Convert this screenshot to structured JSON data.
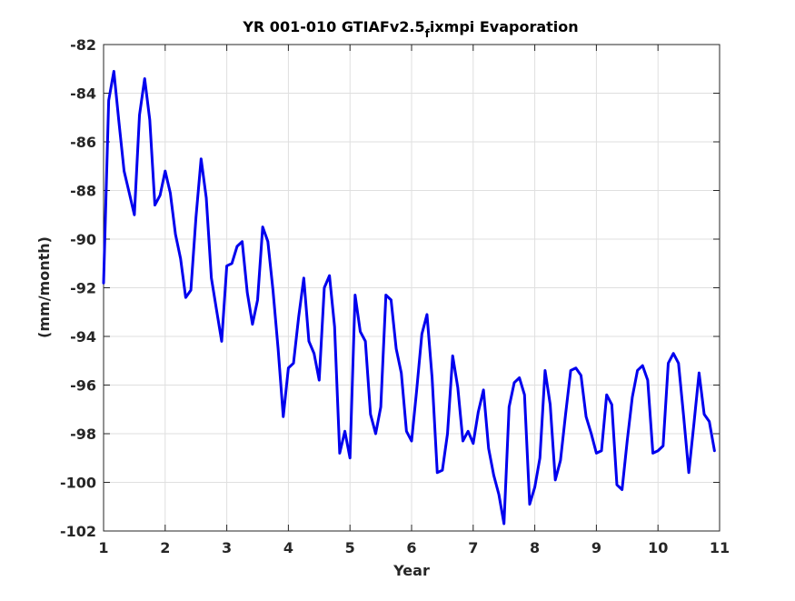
{
  "chart_data": {
    "type": "line",
    "title": "YR 001-010 GTIAFv2.5",
    "title_subscript": "f",
    "title_suffix": "ixmpi Evaporation",
    "xlabel": "Year",
    "ylabel": "(mm/month)",
    "xlim": [
      1,
      11
    ],
    "ylim": [
      -102,
      -82
    ],
    "xticks": [
      1,
      2,
      3,
      4,
      5,
      6,
      7,
      8,
      9,
      10,
      11
    ],
    "yticks": [
      -102,
      -100,
      -98,
      -96,
      -94,
      -92,
      -90,
      -88,
      -86,
      -84,
      -82
    ],
    "grid": true,
    "series_color": "#0000ee",
    "series": [
      {
        "x": [
          1.0,
          1.083,
          1.167,
          1.25,
          1.333,
          1.417,
          1.5,
          1.583,
          1.667,
          1.75,
          1.833,
          1.917,
          2.0,
          2.083,
          2.167,
          2.25,
          2.333,
          2.417,
          2.5,
          2.583,
          2.667,
          2.75,
          2.833,
          2.917,
          3.0,
          3.083,
          3.167,
          3.25,
          3.333,
          3.417,
          3.5,
          3.583,
          3.667,
          3.75,
          3.833,
          3.917,
          4.0,
          4.083,
          4.167,
          4.25,
          4.333,
          4.417,
          4.5,
          4.583,
          4.667,
          4.75,
          4.833,
          4.917,
          5.0,
          5.083,
          5.167,
          5.25,
          5.333,
          5.417,
          5.5,
          5.583,
          5.667,
          5.75,
          5.833,
          5.917,
          6.0,
          6.083,
          6.167,
          6.25,
          6.333,
          6.417,
          6.5,
          6.583,
          6.667,
          6.75,
          6.833,
          6.917,
          7.0,
          7.083,
          7.167,
          7.25,
          7.333,
          7.417,
          7.5,
          7.583,
          7.667,
          7.75,
          7.833,
          7.917,
          8.0,
          8.083,
          8.167,
          8.25,
          8.333,
          8.417,
          8.5,
          8.583,
          8.667,
          8.75,
          8.833,
          8.917,
          9.0,
          9.083,
          9.167,
          9.25,
          9.333,
          9.417,
          9.5,
          9.583,
          9.667,
          9.75,
          9.833,
          9.917,
          10.0,
          10.083,
          10.167,
          10.25,
          10.333,
          10.417,
          10.5,
          10.583,
          10.667,
          10.75,
          10.833,
          10.917
        ],
        "values": [
          -91.8,
          -84.3,
          -83.1,
          -85.2,
          -87.2,
          -88.1,
          -89.0,
          -84.9,
          -83.4,
          -85.1,
          -88.6,
          -88.2,
          -87.2,
          -88.1,
          -89.8,
          -90.8,
          -92.4,
          -92.1,
          -89.1,
          -86.7,
          -88.3,
          -91.6,
          -92.9,
          -94.2,
          -91.1,
          -91.0,
          -90.3,
          -90.1,
          -92.2,
          -93.5,
          -92.5,
          -89.5,
          -90.1,
          -92.1,
          -94.5,
          -97.3,
          -95.3,
          -95.1,
          -93.2,
          -91.6,
          -94.2,
          -94.7,
          -95.8,
          -92.0,
          -91.5,
          -93.6,
          -98.8,
          -97.9,
          -99.0,
          -92.3,
          -93.8,
          -94.2,
          -97.2,
          -98.0,
          -96.9,
          -92.3,
          -92.5,
          -94.5,
          -95.5,
          -97.9,
          -98.3,
          -96.2,
          -93.9,
          -93.1,
          -95.7,
          -99.6,
          -99.5,
          -98.0,
          -94.8,
          -96.1,
          -98.3,
          -97.9,
          -98.4,
          -97.1,
          -96.2,
          -98.6,
          -99.7,
          -100.5,
          -101.7,
          -96.9,
          -95.9,
          -95.7,
          -96.4,
          -100.9,
          -100.2,
          -99.0,
          -95.4,
          -96.8,
          -99.9,
          -99.1,
          -97.2,
          -95.4,
          -95.3,
          -95.6,
          -97.3,
          -98.0,
          -98.8,
          -98.7,
          -96.4,
          -96.8,
          -100.1,
          -100.3,
          -98.3,
          -96.5,
          -95.4,
          -95.2,
          -95.8,
          -98.8,
          -98.7,
          -98.5,
          -95.1,
          -94.7,
          -95.1,
          -97.3,
          -99.6,
          -97.6,
          -95.5,
          -97.2,
          -97.5,
          -98.7
        ]
      }
    ]
  }
}
